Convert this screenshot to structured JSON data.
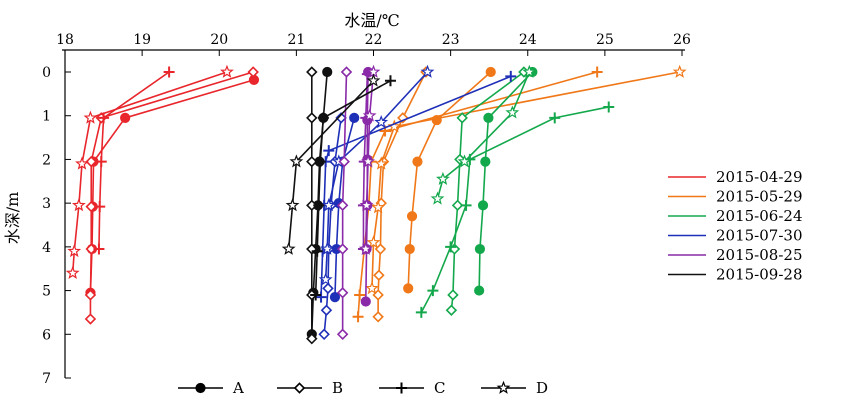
{
  "chart_data": {
    "type": "line",
    "xlabel": "水温/℃",
    "ylabel": "水深/m",
    "xlim": [
      18,
      26
    ],
    "ylim": [
      0,
      7
    ],
    "x_ticks": [
      18,
      19,
      20,
      21,
      22,
      23,
      24,
      25,
      26
    ],
    "y_ticks": [
      0,
      1,
      2,
      3,
      4,
      5,
      6,
      7
    ],
    "x_axis_position": "top",
    "y_axis_inverted": true,
    "grid": false,
    "legend_dates_placement": "right",
    "legend_markers_placement": "bottom",
    "dates": [
      {
        "name": "2015-04-29",
        "color": "#e8262b"
      },
      {
        "name": "2015-05-29",
        "color": "#f07818"
      },
      {
        "name": "2015-06-24",
        "color": "#14a84c"
      },
      {
        "name": "2015-07-30",
        "color": "#1f30b8"
      },
      {
        "name": "2015-08-25",
        "color": "#8a2aa8"
      },
      {
        "name": "2015-09-28",
        "color": "#111111"
      }
    ],
    "marker_legend": [
      {
        "label": "A",
        "marker": "circle"
      },
      {
        "label": "B",
        "marker": "diamond"
      },
      {
        "label": "C",
        "marker": "plus"
      },
      {
        "label": "D",
        "marker": "star"
      }
    ],
    "series": [
      {
        "date": "2015-04-29",
        "site": "A",
        "marker": "circle",
        "color": "#e8262b",
        "x": [
          20.45,
          18.78,
          18.37,
          18.36,
          18.35,
          18.33
        ],
        "y": [
          0.18,
          1.05,
          2.05,
          3.08,
          4.05,
          5.05
        ]
      },
      {
        "date": "2015-04-29",
        "site": "B",
        "marker": "diamond",
        "color": "#e8262b",
        "x": [
          20.44,
          18.47,
          18.34,
          18.34,
          18.34,
          18.33,
          18.33
        ],
        "y": [
          0.0,
          1.05,
          2.05,
          3.08,
          4.05,
          5.1,
          5.65
        ]
      },
      {
        "date": "2015-04-29",
        "site": "C",
        "marker": "plus",
        "color": "#e8262b",
        "x": [
          19.35,
          18.5,
          18.47,
          18.45,
          18.44
        ],
        "y": [
          0.0,
          1.05,
          2.05,
          3.08,
          4.05
        ]
      },
      {
        "date": "2015-04-29",
        "site": "D",
        "marker": "star",
        "color": "#e8262b",
        "x": [
          20.1,
          18.33,
          18.22,
          18.18,
          18.12,
          18.1
        ],
        "y": [
          0.0,
          1.05,
          2.1,
          3.05,
          4.1,
          4.6
        ]
      },
      {
        "date": "2015-05-29",
        "site": "A",
        "marker": "circle",
        "color": "#f07818",
        "x": [
          23.52,
          22.82,
          22.57,
          22.5,
          22.47,
          22.45
        ],
        "y": [
          0.0,
          1.1,
          2.05,
          3.3,
          4.05,
          4.95
        ]
      },
      {
        "date": "2015-05-29",
        "site": "B",
        "marker": "diamond",
        "color": "#f07818",
        "x": [
          22.68,
          22.38,
          22.13,
          22.1,
          22.09,
          22.07,
          22.06,
          22.06
        ],
        "y": [
          0.0,
          1.05,
          2.05,
          3.0,
          4.05,
          4.65,
          5.1,
          5.6
        ]
      },
      {
        "date": "2015-05-29",
        "site": "C",
        "marker": "plus",
        "color": "#f07818",
        "x": [
          24.9,
          22.15,
          21.97,
          21.94,
          21.88,
          21.82,
          21.8
        ],
        "y": [
          0.0,
          1.35,
          2.05,
          3.05,
          4.05,
          5.1,
          5.6
        ]
      },
      {
        "date": "2015-05-29",
        "site": "D",
        "marker": "star",
        "color": "#f07818",
        "x": [
          25.97,
          22.27,
          22.1,
          22.06,
          22.0,
          21.98
        ],
        "y": [
          0.0,
          1.25,
          2.1,
          3.1,
          3.9,
          4.95
        ]
      },
      {
        "date": "2015-06-24",
        "site": "A",
        "marker": "circle",
        "color": "#14a84c",
        "x": [
          24.06,
          23.49,
          23.45,
          23.42,
          23.38,
          23.37
        ],
        "y": [
          0.0,
          1.05,
          2.05,
          3.05,
          4.05,
          5.0
        ]
      },
      {
        "date": "2015-06-24",
        "site": "B",
        "marker": "diamond",
        "color": "#14a84c",
        "x": [
          23.95,
          23.15,
          23.12,
          23.09,
          23.05,
          23.03,
          23.01
        ],
        "y": [
          0.0,
          1.05,
          2.0,
          3.05,
          4.05,
          5.1,
          5.45
        ]
      },
      {
        "date": "2015-06-24",
        "site": "C",
        "marker": "plus",
        "color": "#14a84c",
        "x": [
          25.05,
          24.35,
          23.25,
          23.2,
          23.0,
          22.77,
          22.62
        ],
        "y": [
          0.8,
          1.05,
          2.0,
          3.05,
          4.0,
          5.0,
          5.5
        ]
      },
      {
        "date": "2015-06-24",
        "site": "D",
        "marker": "star",
        "color": "#14a84c",
        "x": [
          24.02,
          23.8,
          23.18,
          22.9,
          22.83
        ],
        "y": [
          0.0,
          0.93,
          2.05,
          2.45,
          2.9
        ]
      },
      {
        "date": "2015-07-30",
        "site": "A",
        "marker": "circle",
        "color": "#1f30b8",
        "x": [
          21.75,
          21.6,
          21.55,
          21.52,
          21.5
        ],
        "y": [
          1.05,
          2.05,
          3.0,
          4.05,
          5.15
        ]
      },
      {
        "date": "2015-07-30",
        "site": "B",
        "marker": "diamond",
        "color": "#1f30b8",
        "x": [
          21.58,
          21.5,
          21.45,
          21.42,
          21.41,
          21.39,
          21.36
        ],
        "y": [
          1.05,
          2.05,
          3.05,
          4.05,
          4.95,
          5.45,
          6.0
        ]
      },
      {
        "date": "2015-07-30",
        "site": "C",
        "marker": "plus",
        "color": "#1f30b8",
        "x": [
          23.78,
          21.42,
          21.38,
          21.36,
          21.34,
          21.32
        ],
        "y": [
          0.1,
          1.8,
          2.05,
          3.05,
          4.1,
          5.15
        ]
      },
      {
        "date": "2015-07-30",
        "site": "D",
        "marker": "star",
        "color": "#1f30b8",
        "x": [
          22.7,
          22.1,
          21.55,
          21.42,
          21.4,
          21.38
        ],
        "y": [
          0.0,
          1.15,
          2.05,
          3.05,
          4.05,
          4.75
        ]
      },
      {
        "date": "2015-08-25",
        "site": "A",
        "marker": "circle",
        "color": "#8a2aa8",
        "x": [
          21.93,
          21.92,
          21.92,
          21.92,
          21.91,
          21.9
        ],
        "y": [
          0.0,
          1.1,
          2.0,
          3.05,
          4.05,
          5.25
        ]
      },
      {
        "date": "2015-08-25",
        "site": "B",
        "marker": "diamond",
        "color": "#8a2aa8",
        "x": [
          21.65,
          21.62,
          21.6,
          21.6,
          21.6,
          21.6
        ],
        "y": [
          0.0,
          2.05,
          3.05,
          4.05,
          5.05,
          6.0
        ]
      },
      {
        "date": "2015-08-25",
        "site": "C",
        "marker": "plus",
        "color": "#8a2aa8",
        "x": [
          21.92,
          21.9,
          21.88,
          21.87,
          21.87
        ],
        "y": [
          0.05,
          1.05,
          2.05,
          3.05,
          4.05
        ]
      },
      {
        "date": "2015-08-25",
        "site": "D",
        "marker": "star",
        "color": "#8a2aa8",
        "x": [
          22.0,
          21.95,
          21.93,
          21.91,
          21.9
        ],
        "y": [
          0.0,
          1.0,
          2.05,
          3.05,
          4.05
        ]
      },
      {
        "date": "2015-09-28",
        "site": "A",
        "marker": "circle",
        "color": "#111111",
        "x": [
          21.4,
          21.35,
          21.3,
          21.28,
          21.25,
          21.22,
          21.2
        ],
        "y": [
          0.0,
          1.05,
          2.05,
          3.05,
          4.05,
          5.05,
          6.0
        ]
      },
      {
        "date": "2015-09-28",
        "site": "B",
        "marker": "diamond",
        "color": "#111111",
        "x": [
          21.2,
          21.2,
          21.2,
          21.2,
          21.2,
          21.2,
          21.2
        ],
        "y": [
          0.0,
          1.05,
          2.05,
          3.05,
          4.05,
          5.1,
          6.1
        ]
      },
      {
        "date": "2015-09-28",
        "site": "C",
        "marker": "plus",
        "color": "#111111",
        "x": [
          22.22,
          21.35,
          21.31,
          21.29,
          21.27,
          21.25
        ],
        "y": [
          0.2,
          1.05,
          2.05,
          3.05,
          4.1,
          5.1
        ]
      },
      {
        "date": "2015-09-28",
        "site": "D",
        "marker": "star",
        "color": "#111111",
        "x": [
          22.0,
          21.0,
          20.95,
          20.9
        ],
        "y": [
          0.2,
          2.05,
          3.05,
          4.05
        ]
      }
    ]
  }
}
